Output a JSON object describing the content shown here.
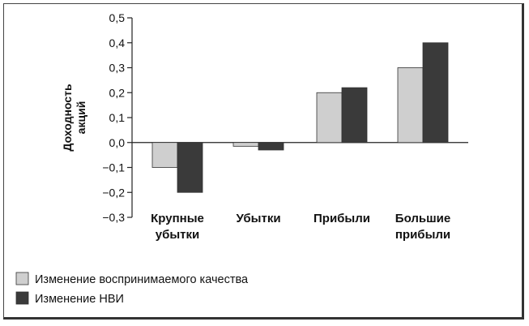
{
  "chart_data": {
    "type": "bar",
    "categories": [
      [
        "Крупные",
        "убытки"
      ],
      [
        "Убытки"
      ],
      [
        "Прибыли"
      ],
      [
        "Большие",
        "прибыли"
      ]
    ],
    "series": [
      {
        "name": "Изменение воспринимаемого качества",
        "values": [
          -0.1,
          -0.015,
          0.2,
          0.3
        ],
        "color": "#cfcfcf"
      },
      {
        "name": "Изменение НВИ",
        "values": [
          -0.2,
          -0.03,
          0.22,
          0.4
        ],
        "color": "#3a3a3a"
      }
    ],
    "ylabel": [
      "Доходность",
      "акций"
    ],
    "ylim": [
      -0.3,
      0.5
    ],
    "yticks": [
      {
        "value": 0.5,
        "label": "0,5"
      },
      {
        "value": 0.4,
        "label": "0,4"
      },
      {
        "value": 0.3,
        "label": "0,3"
      },
      {
        "value": 0.2,
        "label": "0,2"
      },
      {
        "value": 0.1,
        "label": "0,1"
      },
      {
        "value": 0.0,
        "label": "0,0"
      },
      {
        "value": -0.1,
        "label": "−0,1"
      },
      {
        "value": -0.2,
        "label": "−0,2"
      },
      {
        "value": -0.3,
        "label": "−0,3"
      }
    ],
    "legend_position": "bottom-left",
    "grid": false
  }
}
